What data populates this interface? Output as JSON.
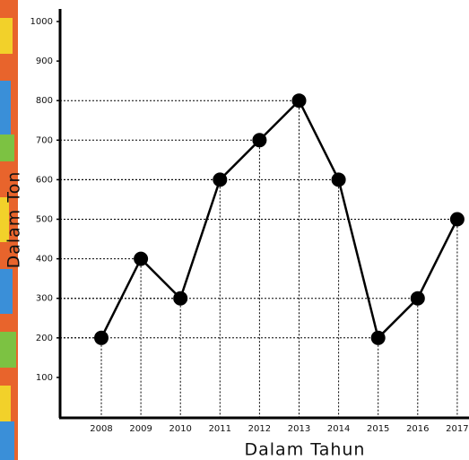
{
  "chart_data": {
    "type": "line",
    "categories": [
      "2008",
      "2009",
      "2010",
      "2011",
      "2012",
      "2013",
      "2014",
      "2015",
      "2016",
      "2017"
    ],
    "values": [
      200,
      400,
      300,
      600,
      700,
      800,
      600,
      200,
      300,
      500
    ],
    "color": "#000000",
    "ylim": [
      0,
      1000
    ],
    "yticks": [
      100,
      200,
      300,
      400,
      500,
      600,
      700,
      800,
      900,
      1000
    ],
    "x_label": "Dalam Tahun",
    "y_label": "Dalam Ton"
  }
}
